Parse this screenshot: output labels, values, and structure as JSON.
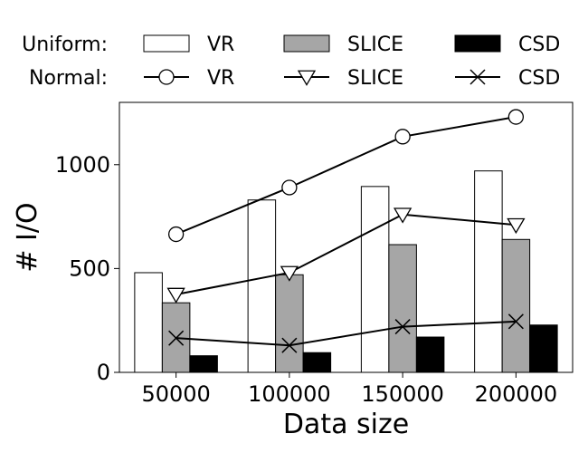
{
  "chart_data": {
    "type": "bar+line",
    "xlabel": "Data size",
    "ylabel": "# I/O",
    "categories": [
      "50000",
      "100000",
      "150000",
      "200000"
    ],
    "ylim": [
      0,
      1300
    ],
    "yticks": [
      0,
      500,
      1000
    ],
    "grid": false,
    "legend_groups": [
      {
        "label": "Uniform:",
        "type": "bar"
      },
      {
        "label": "Normal:",
        "type": "line"
      }
    ],
    "bar_series": [
      {
        "name": "VR",
        "color": "#ffffff",
        "values": [
          480,
          830,
          895,
          970
        ]
      },
      {
        "name": "SLICE",
        "color": "#a6a6a6",
        "values": [
          335,
          470,
          615,
          640
        ]
      },
      {
        "name": "CSD",
        "color": "#000000",
        "values": [
          80,
          95,
          170,
          228
        ]
      }
    ],
    "line_series": [
      {
        "name": "VR",
        "marker": "circle",
        "values": [
          665,
          890,
          1135,
          1230
        ]
      },
      {
        "name": "SLICE",
        "marker": "triangle-down",
        "values": [
          375,
          480,
          760,
          710
        ]
      },
      {
        "name": "CSD",
        "marker": "x",
        "values": [
          165,
          130,
          220,
          245
        ]
      }
    ]
  }
}
